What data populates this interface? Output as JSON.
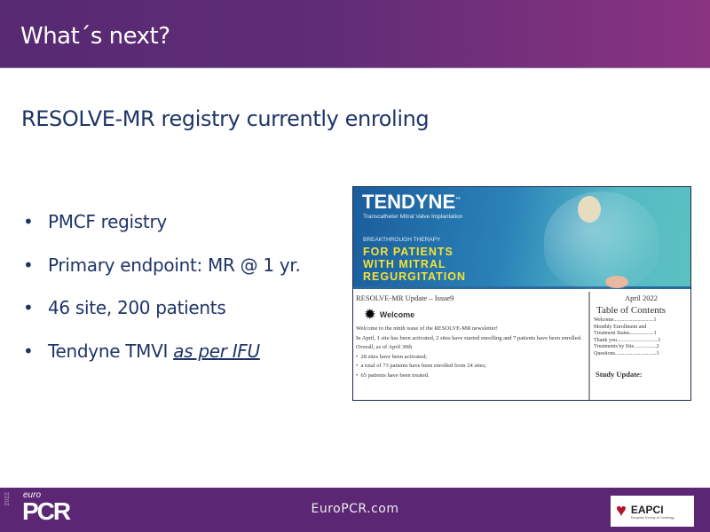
{
  "slide": {
    "title": "What´s next?",
    "subtitle": "RESOLVE-MR registry currently enroling",
    "bullets": [
      "PMCF registry",
      "Primary endpoint: MR @ 1 yr.",
      "46 site, 200 patients"
    ],
    "bullet4_prefix": "Tendyne TMVI ",
    "bullet4_emph": "as per IFU"
  },
  "newsletter": {
    "brand": "TENDYNE",
    "tm": "™",
    "brand_sub": "Transcatheter Mitral Valve Implantation",
    "tag": "BREAKTHROUGH THERAPY",
    "headline": [
      "FOR PATIENTS",
      "WITH MITRAL",
      "REGURGITATION"
    ],
    "issue": "RESOLVE-MR Update – Issue9",
    "welcome": "Welcome",
    "p1": "Welcome to the ninth issue of the RESOLVE-MR newsletter!",
    "p2": "In April, 1 site has been activated, 2 sites have started enrolling and 7 patients have been enrolled.",
    "p3": "Overall, as of April 30th",
    "list": [
      "28 sites have been activated;",
      "a total of 73 patients have been enrolled from 24 sites;",
      "65 patients have been treated."
    ],
    "date": "April 2022",
    "toc_title": "Table of Contents",
    "toc": [
      "Welcome..............................1",
      "Monthly Enrollment and",
      "Treatment Status..................1",
      "Thank you...............................1",
      "Treatments by Site.................2",
      "Questions...............................3"
    ],
    "study": "Study Update:"
  },
  "footer": {
    "year": "2022",
    "euro": "euro",
    "pcr": "PCR",
    "site": "EuroPCR.com",
    "eapci": "EAPCI",
    "esc": "European Society of Cardiology"
  }
}
